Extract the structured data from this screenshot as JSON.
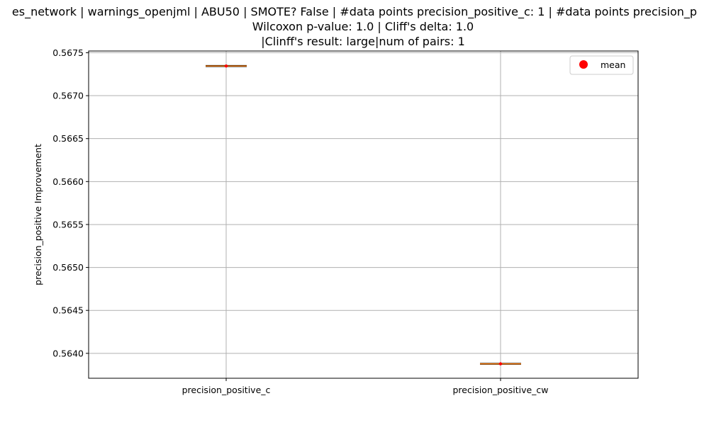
{
  "chart_data": {
    "type": "box",
    "title_lines": [
      "es_network | warnings_openjml | ABU50 | SMOTE? False | #data points precision_positive_c: 1 | #data points precision_p",
      "Wilcoxon p-value: 1.0 | Cliff's delta: 1.0",
      "|Clinff's result: large|num of pairs: 1"
    ],
    "ylabel": "precision_positive Improvement",
    "categories": [
      "precision_positive_c",
      "precision_positive_cw"
    ],
    "values": [
      0.567345,
      0.563878
    ],
    "means": [
      0.567345,
      0.563878
    ],
    "ylim": [
      0.56371,
      0.56752
    ],
    "yticks": [
      0.564,
      0.5645,
      0.565,
      0.5655,
      0.566,
      0.5665,
      0.567,
      0.5675
    ],
    "ytick_labels": [
      "0.5640",
      "0.5645",
      "0.5650",
      "0.5655",
      "0.5660",
      "0.5665",
      "0.5670",
      "0.5675"
    ],
    "grid": true,
    "legend": {
      "placement": "top-right",
      "entries": [
        {
          "label": "mean",
          "color": "#ff0000",
          "marker": "circle"
        }
      ]
    },
    "colors": {
      "median": "#ff7f0e",
      "mean_marker": "#ff0000",
      "grid": "#b0b0b0",
      "box": "#000000"
    }
  }
}
